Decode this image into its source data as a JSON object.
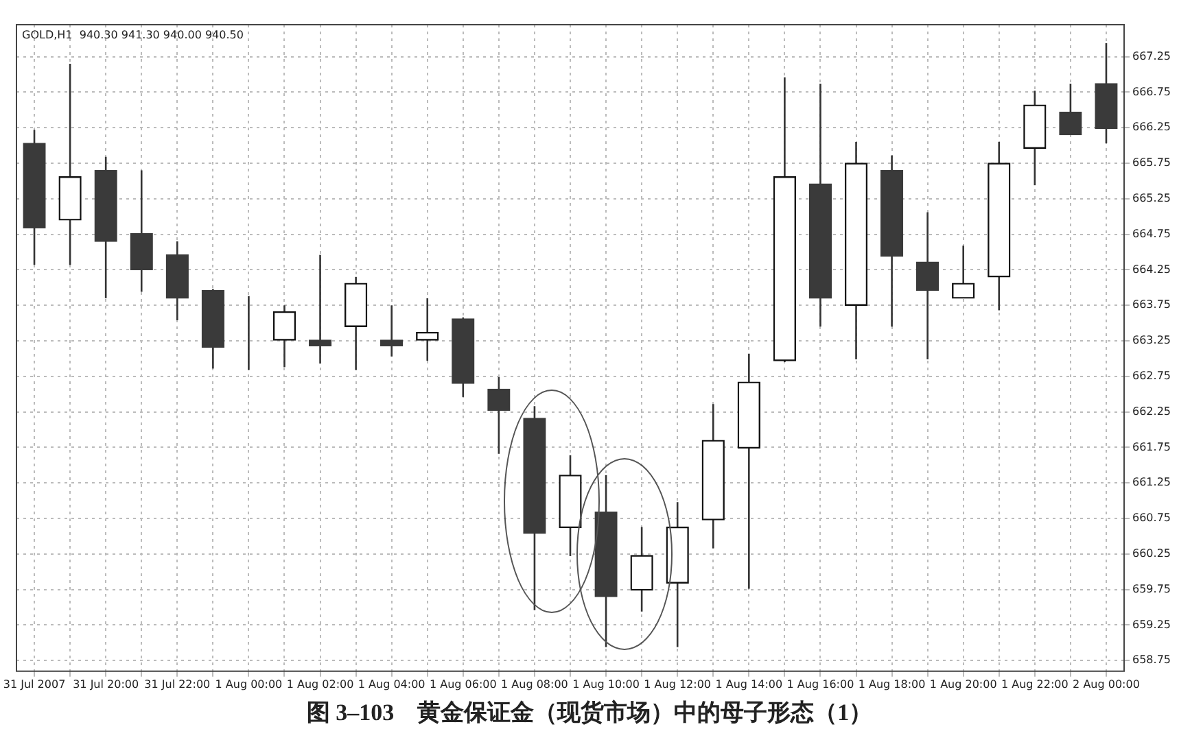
{
  "chart_data": {
    "type": "candlestick",
    "title": "图 3–103　黄金保证金（现货市场）中的母子形态（1）",
    "annotations": [
      "GOLD,H1  940.30 941.30 940.00 940.50"
    ],
    "categories": [
      "31 Jul 2007",
      null,
      "31 Jul 20:00",
      null,
      "31 Jul 22:00",
      null,
      "1 Aug 00:00",
      null,
      "1 Aug 02:00",
      null,
      "1 Aug 04:00",
      null,
      "1 Aug 06:00",
      null,
      "1 Aug 08:00",
      null,
      "1 Aug 10:00",
      null,
      "1 Aug 12:00",
      null,
      "1 Aug 14:00",
      null,
      "1 Aug 16:00",
      null,
      "1 Aug 18:00",
      null,
      "1 Aug 20:00",
      null,
      "1 Aug 22:00",
      null,
      "2 Aug 00:00"
    ],
    "ohlc": [
      [
        666.03,
        666.22,
        664.32,
        664.84
      ],
      [
        664.95,
        667.15,
        664.32,
        665.56
      ],
      [
        665.65,
        665.84,
        663.85,
        664.65
      ],
      [
        664.76,
        665.65,
        663.94,
        664.25
      ],
      [
        664.46,
        664.65,
        663.54,
        663.85
      ],
      [
        663.96,
        663.98,
        662.86,
        663.16
      ],
      [
        663.45,
        663.88,
        662.84,
        663.45
      ],
      [
        663.26,
        663.75,
        662.88,
        663.66
      ],
      [
        663.26,
        664.46,
        662.93,
        663.18
      ],
      [
        663.45,
        664.15,
        662.84,
        664.06
      ],
      [
        663.26,
        663.75,
        663.03,
        663.18
      ],
      [
        663.26,
        663.85,
        662.97,
        663.37
      ],
      [
        663.56,
        663.58,
        662.46,
        662.65
      ],
      [
        662.57,
        662.74,
        661.66,
        662.27
      ],
      [
        662.16,
        662.33,
        659.46,
        660.54
      ],
      [
        660.62,
        661.64,
        660.22,
        661.36
      ],
      [
        660.84,
        661.36,
        658.94,
        659.65
      ],
      [
        659.74,
        660.63,
        659.44,
        660.23
      ],
      [
        659.84,
        660.98,
        658.94,
        660.63
      ],
      [
        660.73,
        662.36,
        660.33,
        661.85
      ],
      [
        661.74,
        663.07,
        659.76,
        662.67
      ],
      [
        662.97,
        666.96,
        662.95,
        665.56
      ],
      [
        665.46,
        666.87,
        663.45,
        663.85
      ],
      [
        663.75,
        666.05,
        662.99,
        665.75
      ],
      [
        665.65,
        665.86,
        663.45,
        664.44
      ],
      [
        664.36,
        665.06,
        662.99,
        663.96
      ],
      [
        663.85,
        664.59,
        663.85,
        664.06
      ],
      [
        664.15,
        666.05,
        663.68,
        665.75
      ],
      [
        665.96,
        666.77,
        665.44,
        666.57
      ],
      [
        666.47,
        666.87,
        666.15,
        666.15
      ],
      [
        666.87,
        667.44,
        666.03,
        666.24
      ]
    ],
    "ylim": [
      658.6,
      667.7
    ],
    "yticks": [
      658.75,
      659.25,
      659.75,
      660.25,
      660.75,
      661.25,
      661.75,
      662.25,
      662.75,
      663.25,
      663.75,
      664.25,
      664.75,
      665.25,
      665.75,
      666.25,
      666.75,
      667.25
    ],
    "grid": true,
    "legend": false
  }
}
